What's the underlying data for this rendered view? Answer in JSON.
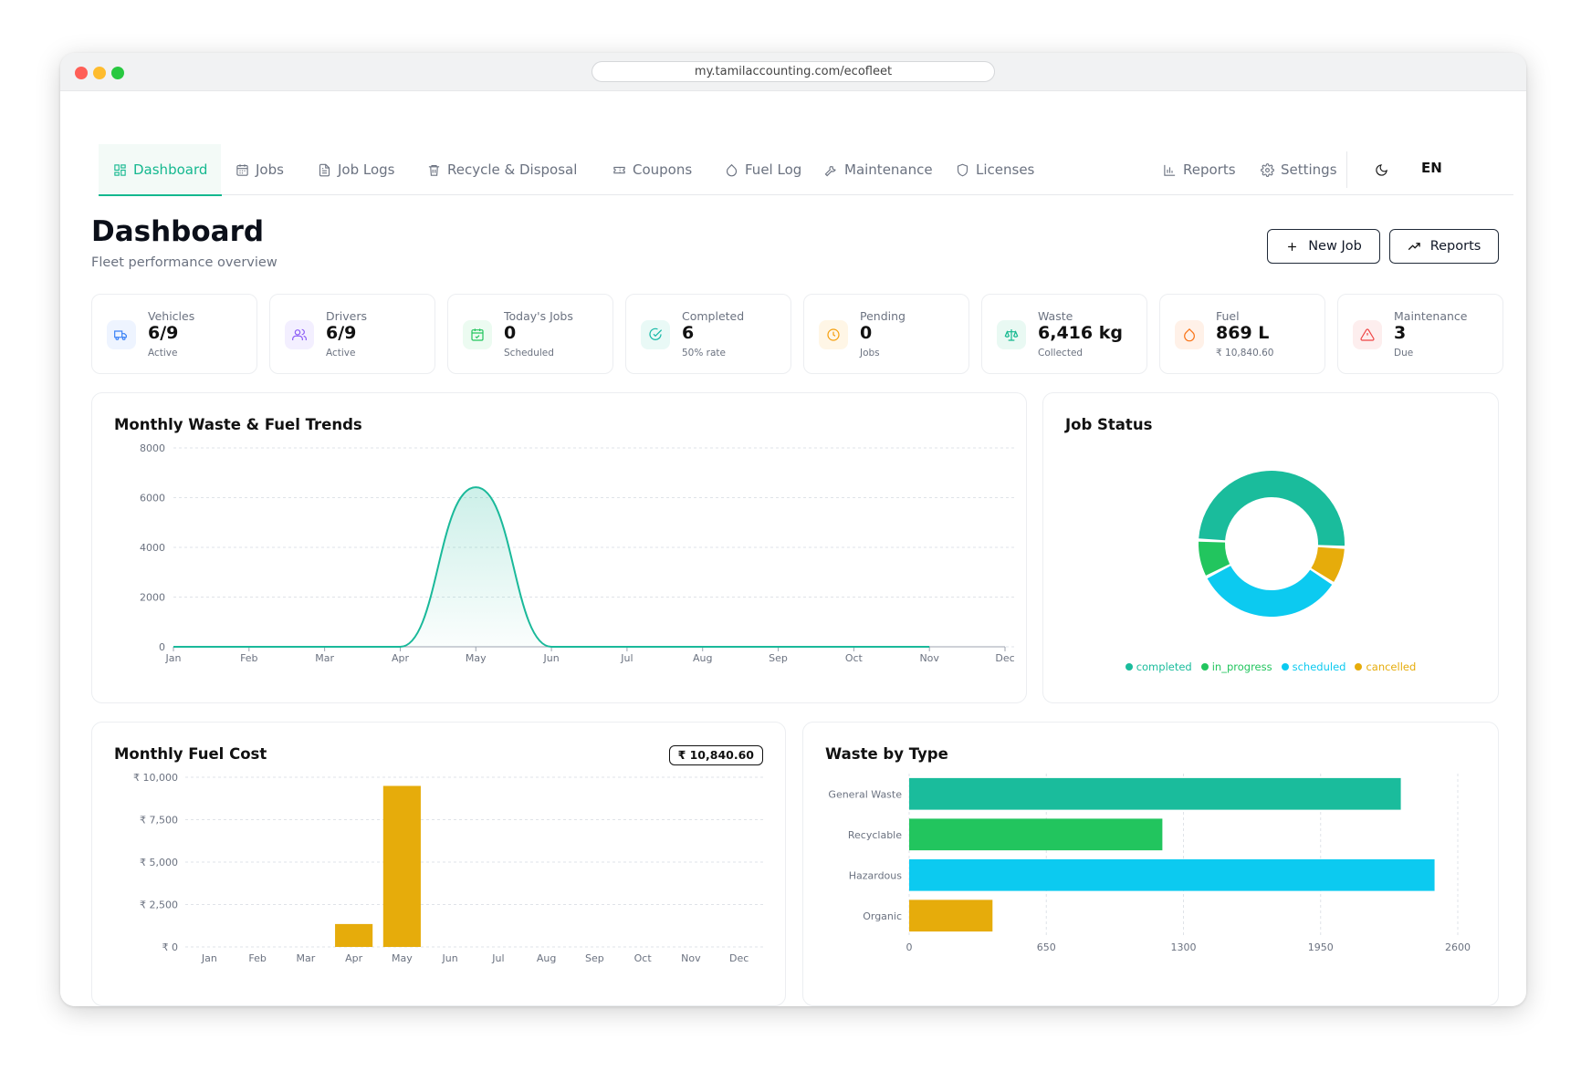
{
  "browser": {
    "url": "my.tamilaccounting.com/ecofleet"
  },
  "nav": {
    "items": [
      {
        "label": "Dashboard",
        "icon": "dashboard-icon"
      },
      {
        "label": "Jobs",
        "icon": "calendar-icon"
      },
      {
        "label": "Job Logs",
        "icon": "file-text-icon"
      },
      {
        "label": "Recycle & Disposal",
        "icon": "trash-icon"
      },
      {
        "label": "Coupons",
        "icon": "ticket-icon"
      },
      {
        "label": "Fuel Log",
        "icon": "droplet-icon"
      },
      {
        "label": "Maintenance",
        "icon": "wrench-icon"
      },
      {
        "label": "Licenses",
        "icon": "shield-icon"
      }
    ],
    "right": [
      {
        "label": "Reports",
        "icon": "bar-chart-icon"
      },
      {
        "label": "Settings",
        "icon": "gear-icon"
      }
    ],
    "theme_icon": "moon-icon",
    "language": "EN",
    "active": "Dashboard"
  },
  "header": {
    "title": "Dashboard",
    "subtitle": "Fleet performance overview",
    "new_job_label": "New Job",
    "reports_label": "Reports"
  },
  "stats": [
    {
      "label": "Vehicles",
      "value": "6/9",
      "sub": "Active",
      "icon": "truck-icon",
      "color": "#3b82f6",
      "bg": "#eef4ff"
    },
    {
      "label": "Drivers",
      "value": "6/9",
      "sub": "Active",
      "icon": "users-icon",
      "color": "#8b5cf6",
      "bg": "#f3efff"
    },
    {
      "label": "Today's Jobs",
      "value": "0",
      "sub": "Scheduled",
      "icon": "calendar-check-icon",
      "color": "#22c55e",
      "bg": "#ecfbf1"
    },
    {
      "label": "Completed",
      "value": "6",
      "sub": "50% rate",
      "icon": "check-circle-icon",
      "color": "#14b8a6",
      "bg": "#e9f9f6"
    },
    {
      "label": "Pending",
      "value": "0",
      "sub": "Jobs",
      "icon": "clock-icon",
      "color": "#f59e0b",
      "bg": "#fff6e6"
    },
    {
      "label": "Waste",
      "value": "6,416 kg",
      "sub": "Collected",
      "icon": "scale-icon",
      "color": "#14b88f",
      "bg": "#e9f9f3"
    },
    {
      "label": "Fuel",
      "value": "869 L",
      "sub": "₹ 10,840.60",
      "icon": "droplet-icon",
      "color": "#f97316",
      "bg": "#fff1e8"
    },
    {
      "label": "Maintenance",
      "value": "3",
      "sub": "Due",
      "icon": "alert-triangle-icon",
      "color": "#ef4444",
      "bg": "#fdeeee"
    }
  ],
  "trends": {
    "title": "Monthly Waste & Fuel Trends"
  },
  "job_status": {
    "title": "Job Status"
  },
  "fuel_cost": {
    "title": "Monthly Fuel Cost",
    "total_badge": "₹ 10,840.60"
  },
  "waste_type": {
    "title": "Waste by Type"
  },
  "chart_data": [
    {
      "type": "area",
      "title": "Monthly Waste & Fuel Trends",
      "categories": [
        "Jan",
        "Feb",
        "Mar",
        "Apr",
        "May",
        "Jun",
        "Jul",
        "Aug",
        "Sep",
        "Oct",
        "Nov",
        "Dec"
      ],
      "values": [
        0,
        0,
        0,
        0,
        6416,
        0,
        0,
        0,
        0,
        0,
        0,
        null
      ],
      "ylim": [
        0,
        8000
      ],
      "yticks": [
        0,
        2000,
        4000,
        6000,
        8000
      ],
      "grid": true,
      "color": "#1ab99a"
    },
    {
      "type": "pie",
      "title": "Job Status",
      "donut": true,
      "labels": [
        "completed",
        "in_progress",
        "scheduled",
        "cancelled"
      ],
      "values": [
        6,
        1,
        4,
        1
      ],
      "colors": [
        "#1abc9c",
        "#22c55e",
        "#0ccaf0",
        "#e6ac0b"
      ],
      "legend": "bottom"
    },
    {
      "type": "bar",
      "title": "Monthly Fuel Cost",
      "categories": [
        "Jan",
        "Feb",
        "Mar",
        "Apr",
        "May",
        "Jun",
        "Jul",
        "Aug",
        "Sep",
        "Oct",
        "Nov",
        "Dec"
      ],
      "values": [
        0,
        0,
        0,
        1350,
        9490,
        0,
        0,
        0,
        0,
        0,
        0,
        0
      ],
      "ylim": [
        0,
        10000
      ],
      "yticks": [
        0,
        2500,
        5000,
        7500,
        10000
      ],
      "ytick_labels": [
        "₹ 0",
        "₹ 2,500",
        "₹ 5,000",
        "₹ 7,500",
        "₹ 10,000"
      ],
      "grid": true,
      "color": "#e6ac0b"
    },
    {
      "type": "bar",
      "orientation": "horizontal",
      "title": "Waste by Type",
      "categories": [
        "General Waste",
        "Recyclable",
        "Hazardous",
        "Organic"
      ],
      "values": [
        2330,
        1200,
        2490,
        395
      ],
      "colors": [
        "#1abc9c",
        "#22c55e",
        "#0ccaf0",
        "#e6ac0b"
      ],
      "xlim": [
        0,
        2600
      ],
      "xticks": [
        0,
        650,
        1300,
        1950,
        2600
      ],
      "grid": true
    }
  ]
}
